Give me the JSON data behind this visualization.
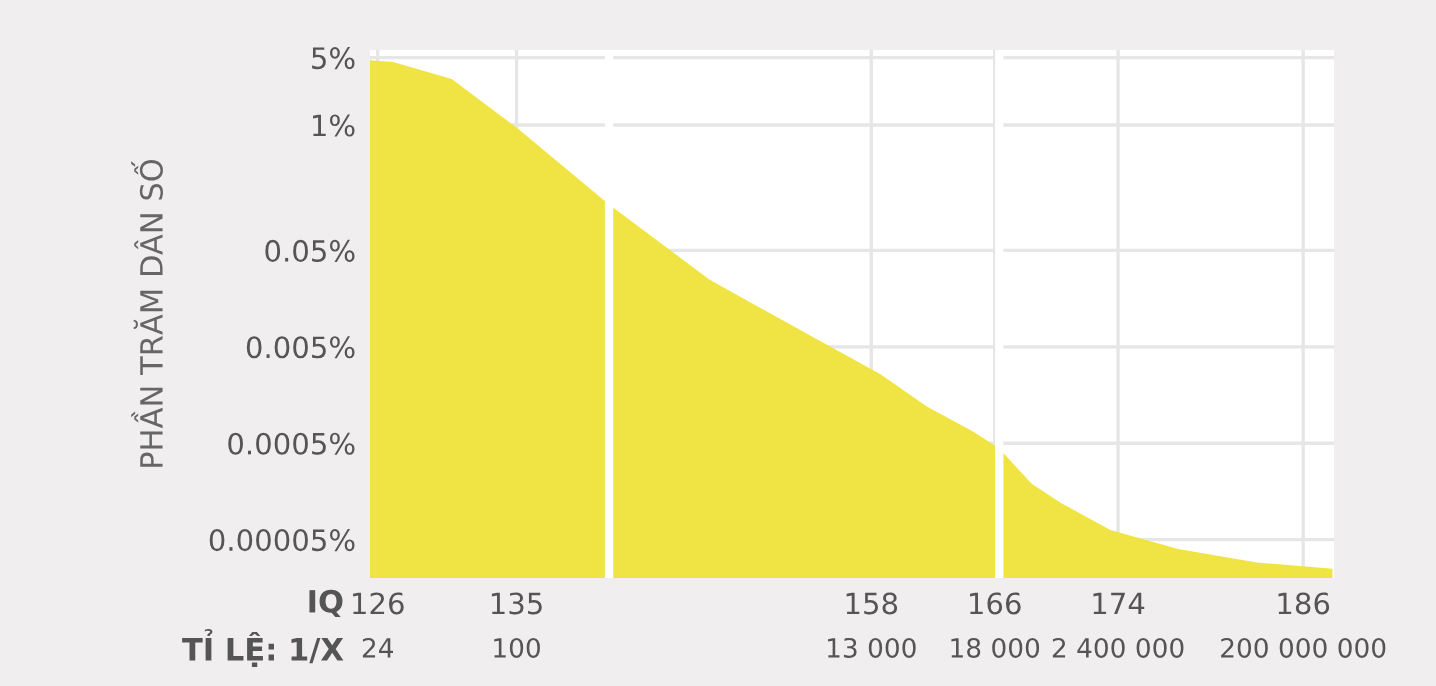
{
  "chart_data": {
    "type": "area",
    "ylabel": "PHẦN TRĂM DÂN SỐ",
    "annotations": [
      "IQ",
      "TỈ LỆ: 1/X",
      "24",
      "100",
      "13 000",
      "18 000",
      "2 400 000",
      "200 000 000"
    ],
    "x": [
      125.5,
      127.0,
      130.8,
      135,
      141.0,
      147.5,
      154.3,
      158.6,
      161.6,
      164.6,
      166.3,
      168.4,
      170.3,
      173.5,
      177.9,
      183.0,
      187.9
    ],
    "series": [
      {
        "color": "#f0e445",
        "values": [
          4.7,
          4.5,
          3.0,
          0.94,
          0.15,
          0.025,
          0.0062,
          0.0026,
          0.0012,
          0.00066,
          0.00044,
          0.00019,
          0.00012,
          6.3e-05,
          4e-05,
          2.9e-05,
          2.5e-05
        ]
      }
    ],
    "xlim": [
      125.5,
      188
    ],
    "xticks": [
      126,
      135,
      158,
      166,
      174,
      186
    ],
    "log": "y",
    "ylim": [
      2e-05,
      6
    ],
    "yticks": [
      {
        "value": 5,
        "label": "5%"
      },
      {
        "value": 1,
        "label": "1%"
      },
      {
        "value": 0.05,
        "label": "0.05%"
      },
      {
        "value": 0.005,
        "label": "0.005%"
      },
      {
        "value": 0.0005,
        "label": "0.0005%"
      },
      {
        "value": 5e-05,
        "label": "0.00005%"
      }
    ],
    "ref_lines": [
      {
        "axis": "x",
        "value": 141.0,
        "color": "#ffffff"
      },
      {
        "axis": "x",
        "value": 166.3,
        "color": "#ffffff"
      }
    ],
    "grid": true
  }
}
